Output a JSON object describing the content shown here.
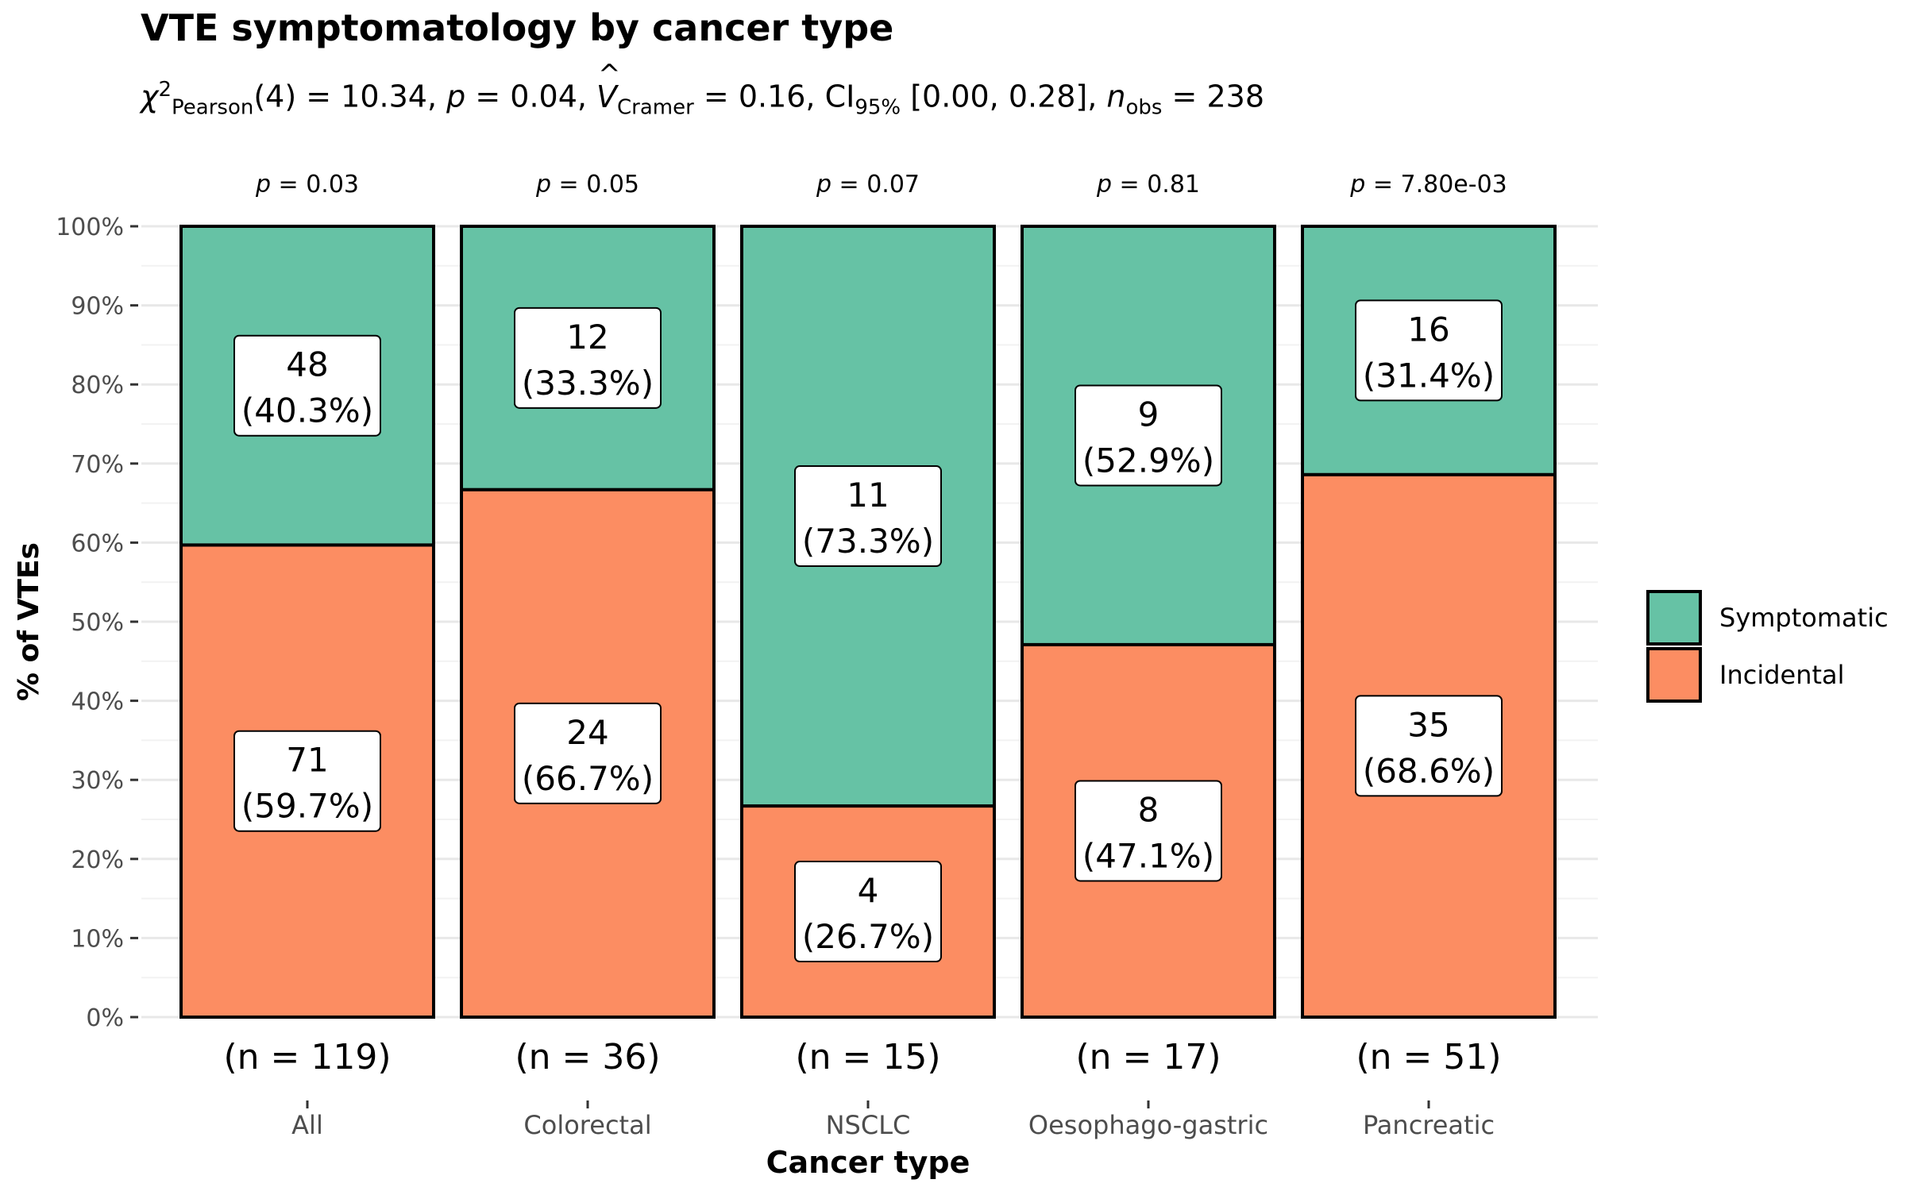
{
  "chart_data": {
    "type": "bar",
    "stacked": true,
    "percent": true,
    "title": "VTE symptomatology by cancer type",
    "subtitle_parts": {
      "chi": "χ",
      "chi_sup": "2",
      "chi_sub": "Pearson",
      "df_and_stat": "(4) = 10.34, ",
      "p_label": "p",
      "p_value": " = 0.04, ",
      "v_label": "V",
      "v_sub": "Cramer",
      "v_value": " = 0.16, CI",
      "ci_sub": "95%",
      "ci_value": " [0.00, 0.28], ",
      "n_label": "n",
      "n_sub": "obs",
      "n_value": " = 238"
    },
    "xlabel": "Cancer type",
    "ylabel": "% of VTEs",
    "ylim": [
      0,
      100
    ],
    "yticks": [
      "0%",
      "10%",
      "20%",
      "30%",
      "40%",
      "50%",
      "60%",
      "70%",
      "80%",
      "90%",
      "100%"
    ],
    "categories": [
      "All",
      "Colorectal",
      "NSCLC",
      "Oesophago-gastric",
      "Pancreatic"
    ],
    "p_values": [
      "p = 0.03",
      "p = 0.05",
      "p = 0.07",
      "p = 0.81",
      "p = 7.80e-03"
    ],
    "n_labels": [
      "(n = 119)",
      "(n = 36)",
      "(n = 15)",
      "(n = 17)",
      "(n = 51)"
    ],
    "series": [
      {
        "name": "Incidental",
        "color": "#FC8D62",
        "counts": [
          71,
          24,
          4,
          8,
          35
        ],
        "percents": [
          59.7,
          66.7,
          26.7,
          47.1,
          68.6
        ],
        "labels": [
          "(59.7%)",
          "(66.7%)",
          "(26.7%)",
          "(47.1%)",
          "(68.6%)"
        ]
      },
      {
        "name": "Symptomatic",
        "color": "#66C2A5",
        "counts": [
          48,
          12,
          11,
          9,
          16
        ],
        "percents": [
          40.3,
          33.3,
          73.3,
          52.9,
          31.4
        ],
        "labels": [
          "(40.3%)",
          "(33.3%)",
          "(73.3%)",
          "(52.9%)",
          "(31.4%)"
        ]
      }
    ],
    "legend": {
      "position": "right",
      "entries": [
        "Symptomatic",
        "Incidental"
      ]
    },
    "grid": true
  }
}
